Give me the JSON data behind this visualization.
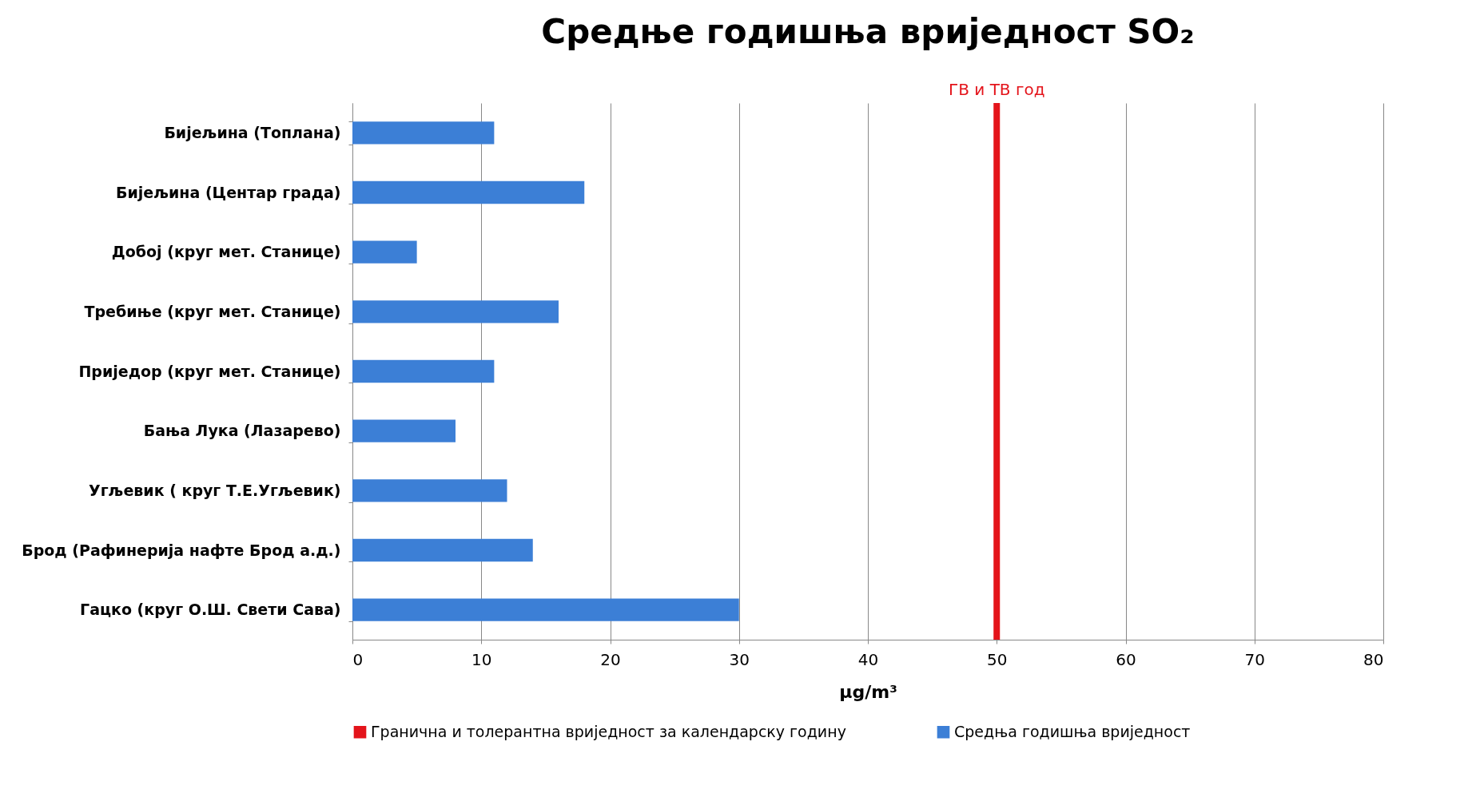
{
  "chart_data": {
    "type": "bar",
    "orientation": "horizontal",
    "title": "Средње годишња вриједност SO₂",
    "xlabel": "µg/m³",
    "categories": [
      "Бијељина  (Топлана)",
      "Бијељина  (Центар града)",
      "Добој (круг мет. Станице)",
      "Требиње (круг мет. Станице)",
      "Приједор (круг мет. Станице)",
      "Бања Лука (Лазарево)",
      "Угљевик ( круг Т.Е.Угљевик)",
      "Брод (Рафинерија  нафте Брод а.д.)",
      "Гацко  (круг О.Ш. Свети Сава)"
    ],
    "series": [
      {
        "name": "Средња годишња вриједност",
        "color": "#3c7fd6",
        "values": [
          11,
          18,
          5,
          16,
          11,
          8,
          12,
          14,
          30
        ]
      }
    ],
    "xlim": [
      0,
      80
    ],
    "xticks": [
      0,
      10,
      20,
      30,
      40,
      50,
      60,
      70,
      80
    ],
    "grid": "x",
    "legend": "bottom",
    "ref_lines": [
      {
        "axis": "x",
        "value": 50,
        "label": "ГВ и ТВ год",
        "color": "#e4141b"
      }
    ],
    "annotations": [
      "Гранична  и толерантна  вриједност  за  календарску  годину"
    ]
  }
}
